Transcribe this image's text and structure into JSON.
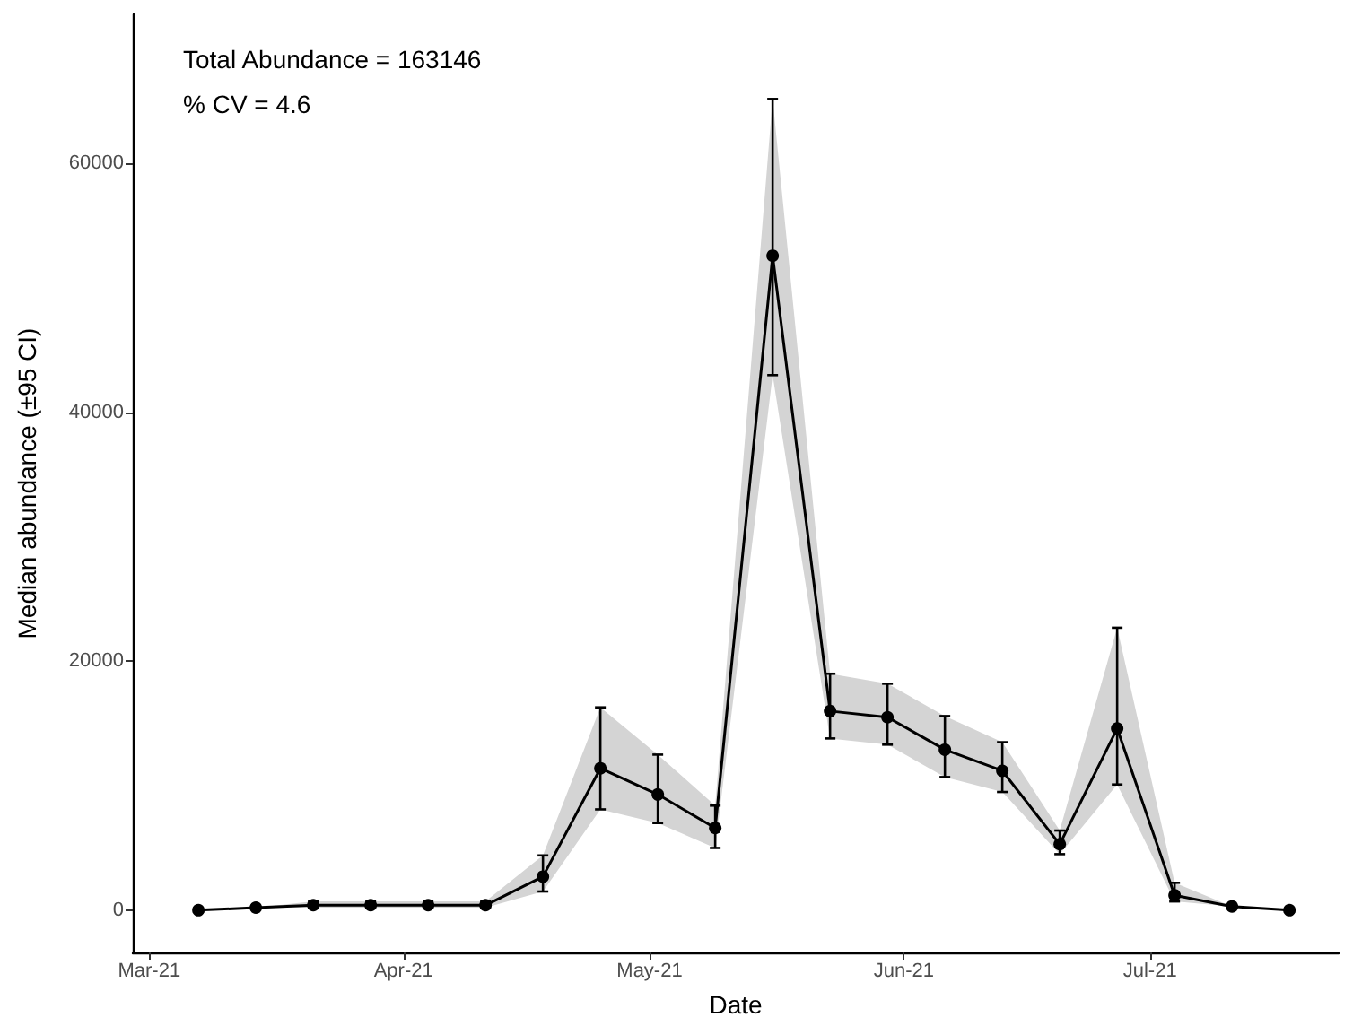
{
  "chart_data": {
    "type": "line",
    "xlabel": "Date",
    "ylabel": "Median abundance (±95 CI)",
    "annotations": [
      "Total Abundance = 163146",
      "% CV = 4.6"
    ],
    "x": [
      "2021-03-07",
      "2021-03-14",
      "2021-03-21",
      "2021-03-28",
      "2021-04-04",
      "2021-04-11",
      "2021-04-18",
      "2021-04-25",
      "2021-05-02",
      "2021-05-09",
      "2021-05-16",
      "2021-05-23",
      "2021-05-30",
      "2021-06-06",
      "2021-06-13",
      "2021-06-20",
      "2021-06-27",
      "2021-07-04",
      "2021-07-11",
      "2021-07-18"
    ],
    "series": [
      {
        "color": "#000000",
        "marker": "circle",
        "line_style": "solid",
        "values": [
          0,
          200,
          400,
          400,
          400,
          400,
          2700,
          11400,
          9300,
          6600,
          52600,
          16000,
          15500,
          12900,
          11200,
          5300,
          14600,
          1200,
          300,
          0
        ],
        "errors": [
          null,
          null,
          [
            200,
            700
          ],
          [
            200,
            700
          ],
          [
            200,
            700
          ],
          [
            200,
            700
          ],
          [
            1500,
            4400
          ],
          [
            8100,
            16300
          ],
          [
            7000,
            12500
          ],
          [
            5000,
            8400
          ],
          [
            43000,
            65200
          ],
          [
            13800,
            19000
          ],
          [
            13300,
            18200
          ],
          [
            10700,
            15600
          ],
          [
            9500,
            13500
          ],
          [
            4500,
            6400
          ],
          [
            10100,
            22700
          ],
          [
            700,
            2200
          ],
          null,
          null
        ],
        "lower": [
          0,
          200,
          200,
          200,
          200,
          200,
          1500,
          8100,
          7000,
          5000,
          43000,
          13800,
          13300,
          10700,
          9500,
          4500,
          10100,
          700,
          300,
          0
        ],
        "upper": [
          0,
          200,
          700,
          700,
          700,
          700,
          4400,
          16300,
          12500,
          8400,
          65200,
          19000,
          18200,
          15600,
          13500,
          6400,
          22700,
          2200,
          300,
          0
        ]
      }
    ],
    "xlim": [
      "2021-02-27",
      "2021-07-24"
    ],
    "xticks": [
      {
        "value": "2021-03-01",
        "label": "Mar-21"
      },
      {
        "value": "2021-04-01",
        "label": "Apr-21"
      },
      {
        "value": "2021-05-01",
        "label": "May-21"
      },
      {
        "value": "2021-06-01",
        "label": "Jun-21"
      },
      {
        "value": "2021-07-01",
        "label": "Jul-21"
      }
    ],
    "ylim": [
      -3400,
      72000
    ],
    "yticks": [
      0,
      20000,
      40000,
      60000
    ],
    "grid": false
  }
}
